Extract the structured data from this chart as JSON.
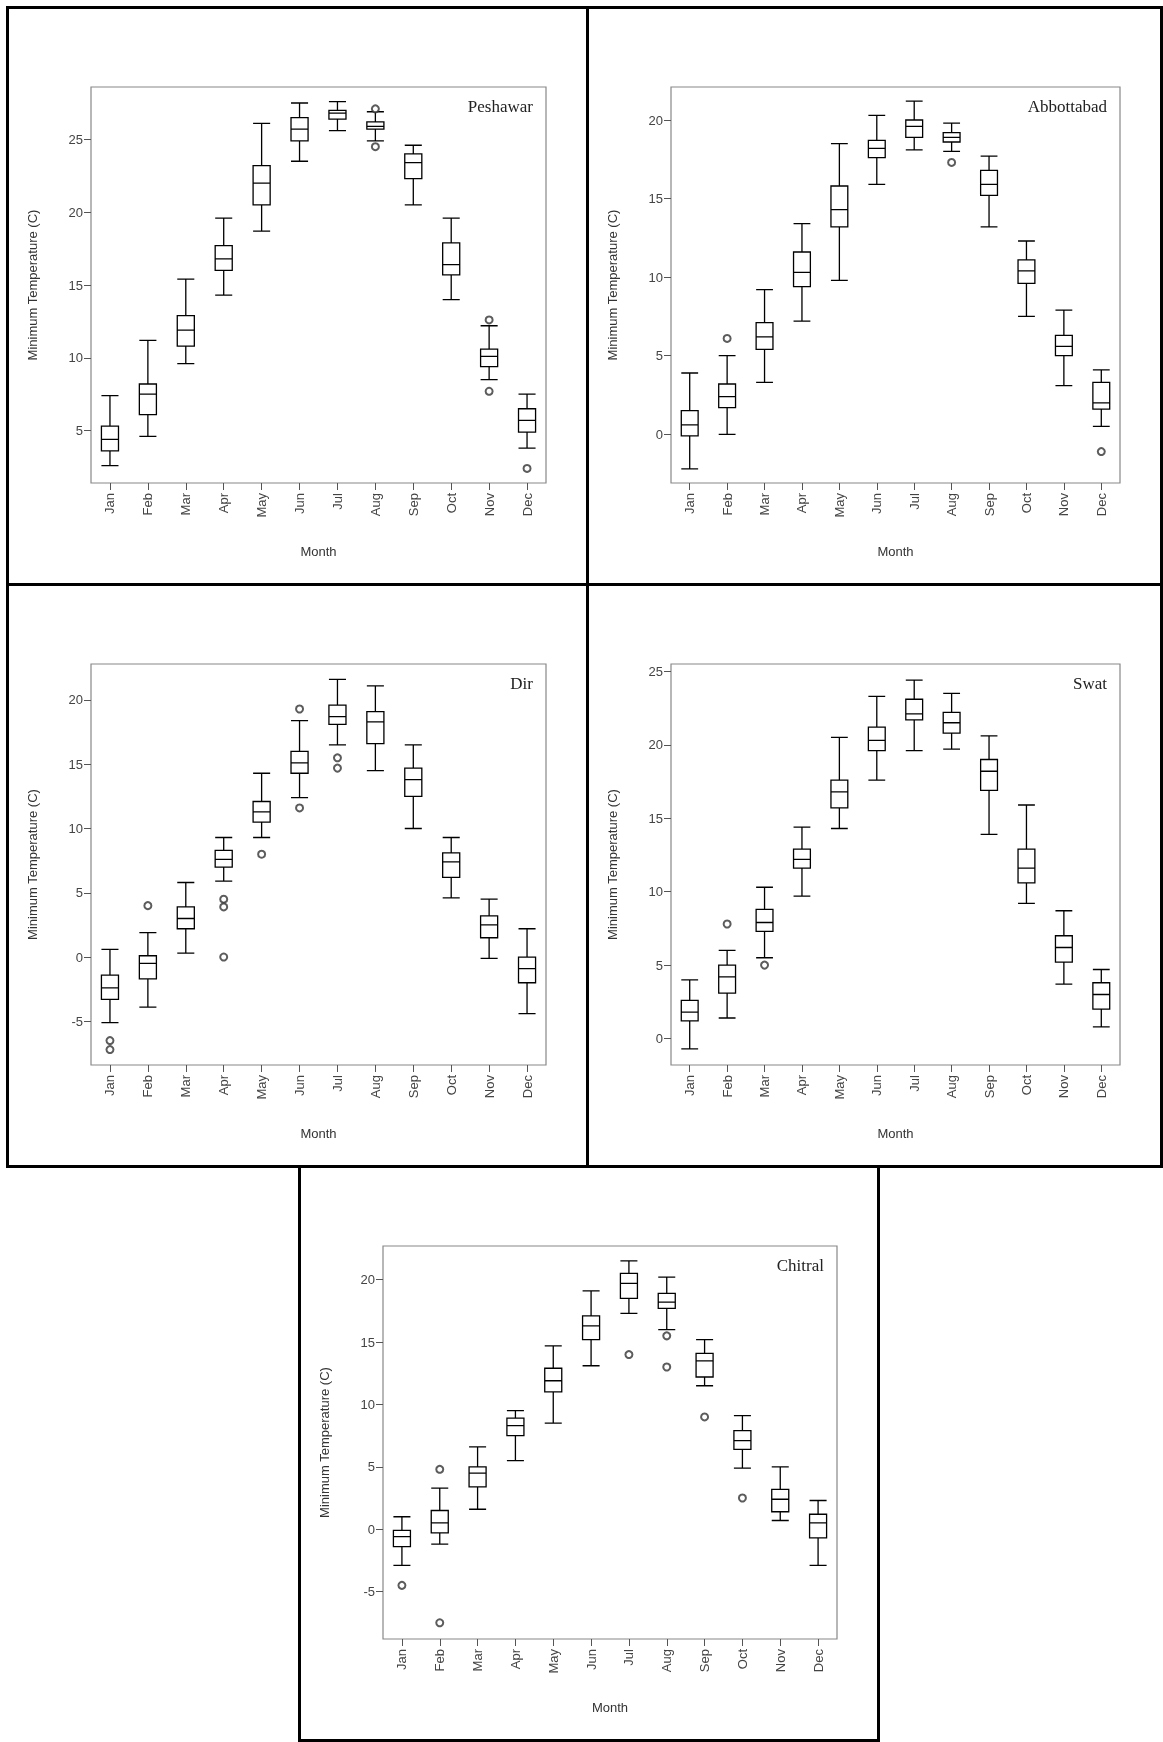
{
  "chart_data": [
    {
      "type": "box",
      "title": "Peshawar",
      "xlabel": "Month",
      "ylabel": "Minimum Temperature (C)",
      "categories": [
        "Jan",
        "Feb",
        "Mar",
        "Apr",
        "May",
        "Jun",
        "Jul",
        "Aug",
        "Sep",
        "Oct",
        "Nov",
        "Dec"
      ],
      "ylim": [
        1.4,
        28.6
      ],
      "yticks": [
        5,
        10,
        15,
        20,
        25
      ],
      "grid": false,
      "boxes": [
        {
          "low": 2.6,
          "q1": 3.6,
          "median": 4.4,
          "q3": 5.3,
          "high": 7.4
        },
        {
          "low": 4.6,
          "q1": 6.1,
          "median": 7.5,
          "q3": 8.2,
          "high": 11.2
        },
        {
          "low": 9.6,
          "q1": 10.8,
          "median": 11.9,
          "q3": 12.9,
          "high": 15.4
        },
        {
          "low": 14.3,
          "q1": 16.0,
          "median": 16.8,
          "q3": 17.7,
          "high": 19.6
        },
        {
          "low": 18.7,
          "q1": 20.5,
          "median": 22.0,
          "q3": 23.2,
          "high": 26.1
        },
        {
          "low": 23.5,
          "q1": 24.9,
          "median": 25.7,
          "q3": 26.5,
          "high": 27.5
        },
        {
          "low": 25.6,
          "q1": 26.4,
          "median": 26.8,
          "q3": 27.0,
          "high": 27.6
        },
        {
          "low": 24.9,
          "q1": 25.7,
          "median": 25.9,
          "q3": 26.2,
          "high": 26.9,
          "outliers": [
            27.1,
            24.5
          ]
        },
        {
          "low": 20.5,
          "q1": 22.3,
          "median": 23.4,
          "q3": 24.0,
          "high": 24.6
        },
        {
          "low": 14.0,
          "q1": 15.7,
          "median": 16.4,
          "q3": 17.9,
          "high": 19.6
        },
        {
          "low": 8.5,
          "q1": 9.4,
          "median": 10.1,
          "q3": 10.6,
          "high": 12.2,
          "outliers": [
            12.6,
            7.7
          ]
        },
        {
          "low": 3.8,
          "q1": 4.9,
          "median": 5.7,
          "q3": 6.5,
          "high": 7.5,
          "outliers": [
            2.4
          ]
        }
      ]
    },
    {
      "type": "box",
      "title": "Abbottabad",
      "xlabel": "Month",
      "ylabel": "Minimum Temperature (C)",
      "categories": [
        "Jan",
        "Feb",
        "Mar",
        "Apr",
        "May",
        "Jun",
        "Jul",
        "Aug",
        "Sep",
        "Oct",
        "Nov",
        "Dec"
      ],
      "ylim": [
        -3.1,
        22.1
      ],
      "yticks": [
        0,
        5,
        10,
        15,
        20
      ],
      "grid": false,
      "boxes": [
        {
          "low": -2.2,
          "q1": -0.1,
          "median": 0.6,
          "q3": 1.5,
          "high": 3.9
        },
        {
          "low": 0,
          "q1": 1.7,
          "median": 2.4,
          "q3": 3.2,
          "high": 5.0,
          "outliers": [
            6.1
          ]
        },
        {
          "low": 3.3,
          "q1": 5.4,
          "median": 6.2,
          "q3": 7.1,
          "high": 9.2
        },
        {
          "low": 7.2,
          "q1": 9.4,
          "median": 10.3,
          "q3": 11.6,
          "high": 13.4
        },
        {
          "low": 9.8,
          "q1": 13.2,
          "median": 14.3,
          "q3": 15.8,
          "high": 18.5
        },
        {
          "low": 15.9,
          "q1": 17.6,
          "median": 18.2,
          "q3": 18.7,
          "high": 20.3
        },
        {
          "low": 18.1,
          "q1": 18.9,
          "median": 19.6,
          "q3": 20.0,
          "high": 21.2
        },
        {
          "low": 18.0,
          "q1": 18.6,
          "median": 18.9,
          "q3": 19.2,
          "high": 19.8,
          "outliers": [
            17.3
          ]
        },
        {
          "low": 13.2,
          "q1": 15.2,
          "median": 15.9,
          "q3": 16.8,
          "high": 17.7
        },
        {
          "low": 7.5,
          "q1": 9.6,
          "median": 10.4,
          "q3": 11.1,
          "high": 12.3
        },
        {
          "low": 3.1,
          "q1": 5.0,
          "median": 5.6,
          "q3": 6.3,
          "high": 7.9
        },
        {
          "low": 0.5,
          "q1": 1.6,
          "median": 2.0,
          "q3": 3.3,
          "high": 4.1,
          "outliers": [
            -1.1
          ]
        }
      ]
    },
    {
      "type": "box",
      "title": "Dir",
      "xlabel": "Month",
      "ylabel": "Minimum Temperature (C)",
      "categories": [
        "Jan",
        "Feb",
        "Mar",
        "Apr",
        "May",
        "Jun",
        "Jul",
        "Aug",
        "Sep",
        "Oct",
        "Nov",
        "Dec"
      ],
      "ylim": [
        -8.4,
        22.8
      ],
      "yticks": [
        -5,
        0,
        5,
        10,
        15,
        20
      ],
      "grid": false,
      "boxes": [
        {
          "low": -5.1,
          "q1": -3.3,
          "median": -2.4,
          "q3": -1.4,
          "high": 0.6,
          "outliers": [
            -6.5,
            -7.2
          ]
        },
        {
          "low": -3.9,
          "q1": -1.7,
          "median": -0.5,
          "q3": 0.1,
          "high": 1.9,
          "outliers": [
            4.0
          ]
        },
        {
          "low": 0.3,
          "q1": 2.2,
          "median": 3.0,
          "q3": 3.9,
          "high": 5.8
        },
        {
          "low": 5.9,
          "q1": 7.0,
          "median": 7.6,
          "q3": 8.3,
          "high": 9.3,
          "outliers": [
            4.5,
            3.9,
            0
          ]
        },
        {
          "low": 9.3,
          "q1": 10.5,
          "median": 11.3,
          "q3": 12.1,
          "high": 14.3,
          "outliers": [
            8.0
          ]
        },
        {
          "low": 12.4,
          "q1": 14.3,
          "median": 15.1,
          "q3": 16.0,
          "high": 18.4,
          "outliers": [
            19.3,
            11.6
          ]
        },
        {
          "low": 16.5,
          "q1": 18.1,
          "median": 18.7,
          "q3": 19.6,
          "high": 21.6,
          "outliers": [
            15.5,
            14.7
          ]
        },
        {
          "low": 14.5,
          "q1": 16.6,
          "median": 18.3,
          "q3": 19.1,
          "high": 21.1
        },
        {
          "low": 10.0,
          "q1": 12.5,
          "median": 13.8,
          "q3": 14.7,
          "high": 16.5
        },
        {
          "low": 4.6,
          "q1": 6.2,
          "median": 7.4,
          "q3": 8.1,
          "high": 9.3
        },
        {
          "low": -0.1,
          "q1": 1.5,
          "median": 2.5,
          "q3": 3.2,
          "high": 4.5
        },
        {
          "low": -4.4,
          "q1": -2.0,
          "median": -0.9,
          "q3": 0.0,
          "high": 2.2
        }
      ]
    },
    {
      "type": "box",
      "title": "Swat",
      "xlabel": "Month",
      "ylabel": "Minimum Temperature (C)",
      "categories": [
        "Jan",
        "Feb",
        "Mar",
        "Apr",
        "May",
        "Jun",
        "Jul",
        "Aug",
        "Sep",
        "Oct",
        "Nov",
        "Dec"
      ],
      "ylim": [
        -1.8,
        25.5
      ],
      "yticks": [
        0,
        5,
        10,
        15,
        20,
        25
      ],
      "grid": false,
      "boxes": [
        {
          "low": -0.7,
          "q1": 1.2,
          "median": 1.8,
          "q3": 2.6,
          "high": 4.0
        },
        {
          "low": 1.4,
          "q1": 3.1,
          "median": 4.2,
          "q3": 5.0,
          "high": 6.0,
          "outliers": [
            7.8
          ]
        },
        {
          "low": 5.5,
          "q1": 7.3,
          "median": 7.9,
          "q3": 8.8,
          "high": 10.3,
          "outliers": [
            5.0
          ]
        },
        {
          "low": 9.7,
          "q1": 11.6,
          "median": 12.2,
          "q3": 12.9,
          "high": 14.4
        },
        {
          "low": 14.3,
          "q1": 15.7,
          "median": 16.8,
          "q3": 17.6,
          "high": 20.5
        },
        {
          "low": 17.6,
          "q1": 19.6,
          "median": 20.3,
          "q3": 21.2,
          "high": 23.3
        },
        {
          "low": 19.6,
          "q1": 21.7,
          "median": 22.1,
          "q3": 23.1,
          "high": 24.4
        },
        {
          "low": 19.7,
          "q1": 20.8,
          "median": 21.5,
          "q3": 22.2,
          "high": 23.5
        },
        {
          "low": 13.9,
          "q1": 16.9,
          "median": 18.2,
          "q3": 19.0,
          "high": 20.6
        },
        {
          "low": 9.2,
          "q1": 10.6,
          "median": 11.6,
          "q3": 12.9,
          "high": 15.9
        },
        {
          "low": 3.7,
          "q1": 5.2,
          "median": 6.2,
          "q3": 7.0,
          "high": 8.7
        },
        {
          "low": 0.8,
          "q1": 2.0,
          "median": 3.0,
          "q3": 3.8,
          "high": 4.7
        }
      ]
    },
    {
      "type": "box",
      "title": "Chitral",
      "xlabel": "Month",
      "ylabel": "Minimum Temperature (C)",
      "categories": [
        "Jan",
        "Feb",
        "Mar",
        "Apr",
        "May",
        "Jun",
        "Jul",
        "Aug",
        "Sep",
        "Oct",
        "Nov",
        "Dec"
      ],
      "ylim": [
        -8.8,
        22.7
      ],
      "yticks": [
        -5,
        0,
        5,
        10,
        15,
        20
      ],
      "grid": false,
      "boxes": [
        {
          "low": -2.9,
          "q1": -1.4,
          "median": -0.6,
          "q3": -0.1,
          "high": 1.0,
          "outliers": [
            -4.5
          ]
        },
        {
          "low": -1.2,
          "q1": -0.3,
          "median": 0.5,
          "q3": 1.5,
          "high": 3.3,
          "outliers": [
            4.8,
            -7.5
          ]
        },
        {
          "low": 1.6,
          "q1": 3.4,
          "median": 4.5,
          "q3": 5.0,
          "high": 6.6
        },
        {
          "low": 5.5,
          "q1": 7.5,
          "median": 8.3,
          "q3": 8.9,
          "high": 9.5
        },
        {
          "low": 8.5,
          "q1": 11.0,
          "median": 11.9,
          "q3": 12.9,
          "high": 14.7
        },
        {
          "low": 13.1,
          "q1": 15.2,
          "median": 16.3,
          "q3": 17.1,
          "high": 19.1
        },
        {
          "low": 17.3,
          "q1": 18.5,
          "median": 19.7,
          "q3": 20.5,
          "high": 21.5,
          "outliers": [
            14.0
          ]
        },
        {
          "low": 16.0,
          "q1": 17.7,
          "median": 18.2,
          "q3": 18.9,
          "high": 20.2,
          "outliers": [
            15.5,
            13.0
          ]
        },
        {
          "low": 11.5,
          "q1": 12.2,
          "median": 13.5,
          "q3": 14.1,
          "high": 15.2,
          "outliers": [
            9.0
          ]
        },
        {
          "low": 4.9,
          "q1": 6.4,
          "median": 7.1,
          "q3": 7.9,
          "high": 9.1,
          "outliers": [
            2.5
          ]
        },
        {
          "low": 0.7,
          "q1": 1.4,
          "median": 2.4,
          "q3": 3.2,
          "high": 5.0
        },
        {
          "low": -2.9,
          "q1": -0.7,
          "median": 0.5,
          "q3": 1.2,
          "high": 2.3
        }
      ]
    }
  ]
}
